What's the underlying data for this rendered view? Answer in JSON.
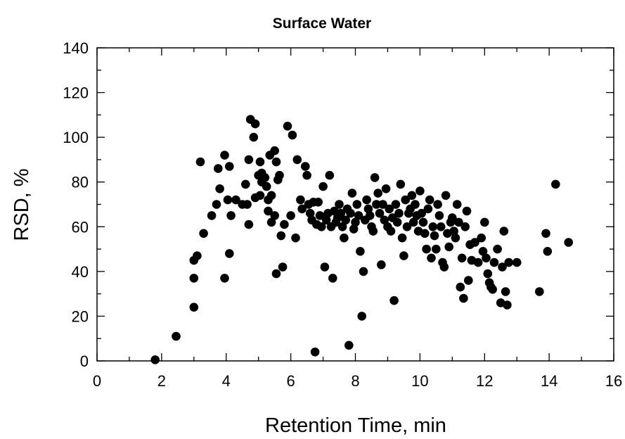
{
  "chart_data": {
    "type": "scatter",
    "title": "Surface Water",
    "xlabel": "Retention Time, min",
    "ylabel": "RSD, %",
    "xlim": [
      0,
      16
    ],
    "ylim": [
      0,
      140
    ],
    "x_ticks": [
      0,
      2,
      4,
      6,
      8,
      10,
      12,
      14,
      16
    ],
    "y_ticks": [
      0,
      20,
      40,
      60,
      80,
      100,
      120,
      140
    ],
    "grid": false,
    "marker_color": "#000000",
    "points": [
      [
        1.8,
        0.5
      ],
      [
        2.45,
        11
      ],
      [
        3.0,
        24
      ],
      [
        3.0,
        37
      ],
      [
        3.0,
        45
      ],
      [
        3.1,
        47
      ],
      [
        3.2,
        89
      ],
      [
        3.3,
        57
      ],
      [
        3.55,
        65
      ],
      [
        3.7,
        70
      ],
      [
        3.75,
        86
      ],
      [
        3.8,
        77
      ],
      [
        3.95,
        37
      ],
      [
        3.95,
        92
      ],
      [
        4.05,
        72
      ],
      [
        4.1,
        87
      ],
      [
        4.1,
        48
      ],
      [
        4.15,
        65
      ],
      [
        4.3,
        72
      ],
      [
        4.5,
        70
      ],
      [
        4.6,
        79
      ],
      [
        4.65,
        70
      ],
      [
        4.7,
        61
      ],
      [
        4.7,
        90
      ],
      [
        4.75,
        108
      ],
      [
        4.85,
        100
      ],
      [
        4.9,
        106
      ],
      [
        4.9,
        73
      ],
      [
        5.0,
        83
      ],
      [
        5.05,
        74
      ],
      [
        5.05,
        89
      ],
      [
        5.1,
        84
      ],
      [
        5.1,
        80
      ],
      [
        5.2,
        82
      ],
      [
        5.25,
        78
      ],
      [
        5.3,
        67
      ],
      [
        5.3,
        72
      ],
      [
        5.35,
        92
      ],
      [
        5.4,
        62
      ],
      [
        5.4,
        74
      ],
      [
        5.5,
        94
      ],
      [
        5.5,
        65
      ],
      [
        5.55,
        89
      ],
      [
        5.55,
        39
      ],
      [
        5.6,
        81
      ],
      [
        5.65,
        83
      ],
      [
        5.7,
        56
      ],
      [
        5.75,
        42
      ],
      [
        5.8,
        61
      ],
      [
        5.9,
        105
      ],
      [
        6.0,
        65
      ],
      [
        6.05,
        101
      ],
      [
        6.15,
        55
      ],
      [
        6.2,
        90
      ],
      [
        6.3,
        72
      ],
      [
        6.35,
        68
      ],
      [
        6.45,
        87
      ],
      [
        6.5,
        83
      ],
      [
        6.55,
        70
      ],
      [
        6.6,
        66
      ],
      [
        6.65,
        63
      ],
      [
        6.7,
        71
      ],
      [
        6.75,
        4
      ],
      [
        6.8,
        61
      ],
      [
        6.85,
        71
      ],
      [
        6.9,
        65
      ],
      [
        6.95,
        60
      ],
      [
        7.0,
        78
      ],
      [
        7.05,
        42
      ],
      [
        7.1,
        63
      ],
      [
        7.15,
        66
      ],
      [
        7.2,
        83
      ],
      [
        7.25,
        60
      ],
      [
        7.3,
        37
      ],
      [
        7.35,
        67
      ],
      [
        7.4,
        62
      ],
      [
        7.45,
        64
      ],
      [
        7.5,
        70
      ],
      [
        7.55,
        66
      ],
      [
        7.6,
        60
      ],
      [
        7.65,
        55
      ],
      [
        7.7,
        63
      ],
      [
        7.75,
        68
      ],
      [
        7.8,
        7
      ],
      [
        7.85,
        66
      ],
      [
        7.9,
        75
      ],
      [
        7.95,
        59
      ],
      [
        8.0,
        62
      ],
      [
        8.05,
        70
      ],
      [
        8.1,
        65
      ],
      [
        8.15,
        49
      ],
      [
        8.2,
        20
      ],
      [
        8.25,
        40
      ],
      [
        8.3,
        63
      ],
      [
        8.35,
        72
      ],
      [
        8.4,
        68
      ],
      [
        8.45,
        65
      ],
      [
        8.5,
        60
      ],
      [
        8.55,
        58
      ],
      [
        8.6,
        82
      ],
      [
        8.65,
        70
      ],
      [
        8.7,
        75
      ],
      [
        8.75,
        66
      ],
      [
        8.8,
        43
      ],
      [
        8.85,
        70
      ],
      [
        8.9,
        63
      ],
      [
        8.95,
        77
      ],
      [
        9.0,
        60
      ],
      [
        9.05,
        68
      ],
      [
        9.1,
        58
      ],
      [
        9.15,
        64
      ],
      [
        9.2,
        27
      ],
      [
        9.25,
        70
      ],
      [
        9.3,
        62
      ],
      [
        9.35,
        66
      ],
      [
        9.4,
        79
      ],
      [
        9.45,
        55
      ],
      [
        9.5,
        47
      ],
      [
        9.55,
        72
      ],
      [
        9.6,
        60
      ],
      [
        9.65,
        66
      ],
      [
        9.7,
        68
      ],
      [
        9.75,
        74
      ],
      [
        9.8,
        62
      ],
      [
        9.85,
        70
      ],
      [
        9.9,
        65
      ],
      [
        9.95,
        58
      ],
      [
        10.0,
        76
      ],
      [
        10.05,
        66
      ],
      [
        10.1,
        62
      ],
      [
        10.15,
        57
      ],
      [
        10.2,
        50
      ],
      [
        10.25,
        68
      ],
      [
        10.3,
        72
      ],
      [
        10.35,
        46
      ],
      [
        10.4,
        60
      ],
      [
        10.45,
        56
      ],
      [
        10.5,
        50
      ],
      [
        10.55,
        70
      ],
      [
        10.6,
        65
      ],
      [
        10.65,
        60
      ],
      [
        10.7,
        44
      ],
      [
        10.75,
        42
      ],
      [
        10.8,
        74
      ],
      [
        10.85,
        57
      ],
      [
        10.9,
        51
      ],
      [
        10.95,
        62
      ],
      [
        11.0,
        64
      ],
      [
        11.05,
        58
      ],
      [
        11.1,
        55
      ],
      [
        11.15,
        70
      ],
      [
        11.2,
        62
      ],
      [
        11.25,
        33
      ],
      [
        11.3,
        46
      ],
      [
        11.35,
        28
      ],
      [
        11.4,
        60
      ],
      [
        11.45,
        67
      ],
      [
        11.5,
        36
      ],
      [
        11.55,
        52
      ],
      [
        11.6,
        45
      ],
      [
        11.7,
        53
      ],
      [
        11.8,
        44
      ],
      [
        11.9,
        55
      ],
      [
        11.95,
        49
      ],
      [
        12.0,
        62
      ],
      [
        12.05,
        46
      ],
      [
        12.1,
        39
      ],
      [
        12.15,
        35
      ],
      [
        12.2,
        33
      ],
      [
        12.25,
        32
      ],
      [
        12.3,
        44
      ],
      [
        12.4,
        50
      ],
      [
        12.5,
        26
      ],
      [
        12.55,
        42
      ],
      [
        12.6,
        58
      ],
      [
        12.65,
        31
      ],
      [
        12.7,
        25
      ],
      [
        12.75,
        44
      ],
      [
        13.0,
        44
      ],
      [
        13.7,
        31
      ],
      [
        13.9,
        57
      ],
      [
        13.95,
        49
      ],
      [
        14.2,
        79
      ],
      [
        14.6,
        53
      ]
    ]
  }
}
